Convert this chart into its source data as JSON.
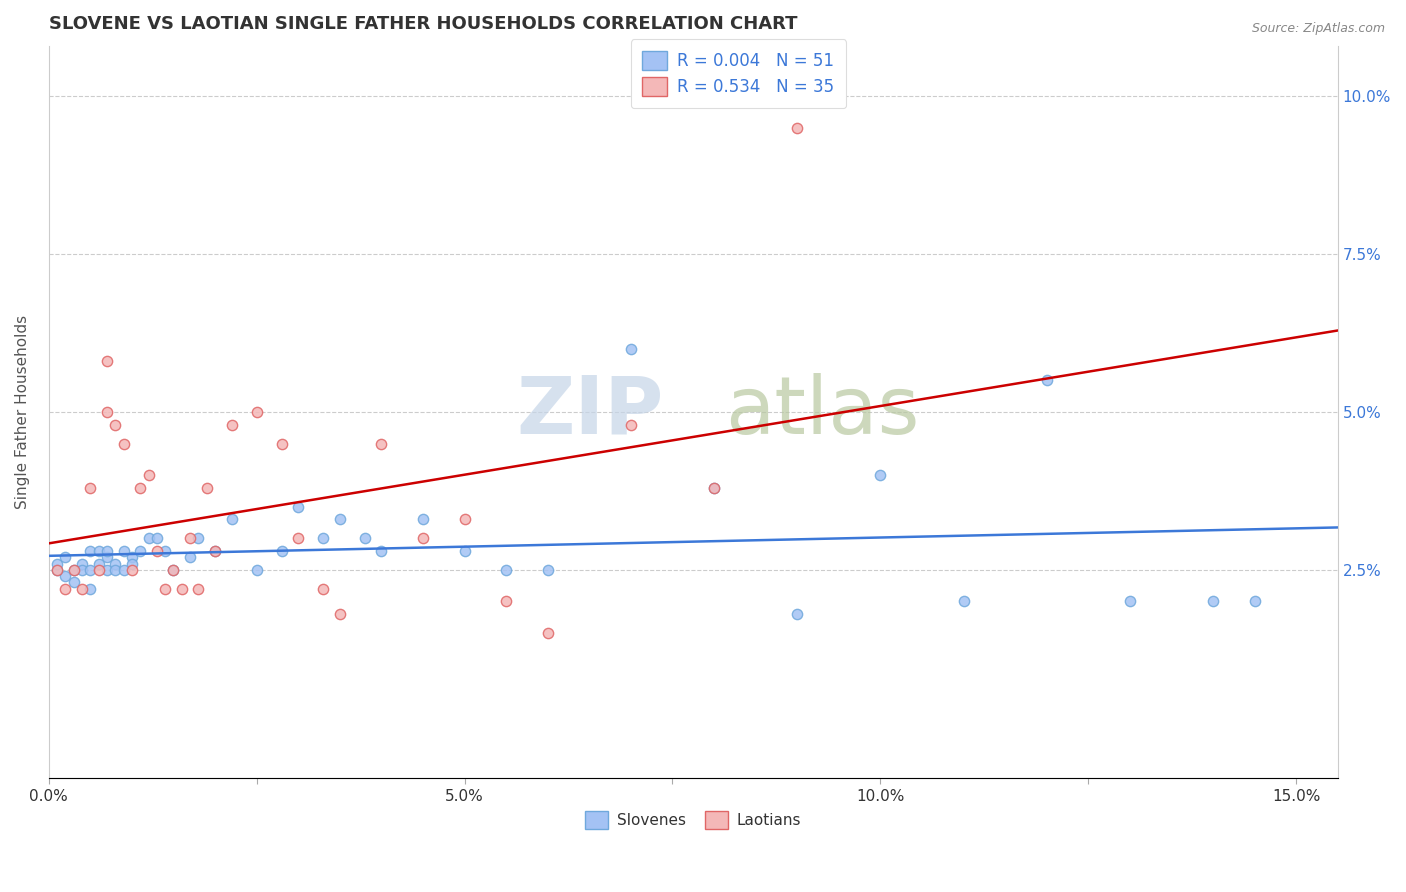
{
  "title": "SLOVENE VS LAOTIAN SINGLE FATHER HOUSEHOLDS CORRELATION CHART",
  "source": "Source: ZipAtlas.com",
  "ylabel": "Single Father Households",
  "xlim": [
    0.0,
    0.155
  ],
  "ylim": [
    -0.008,
    0.108
  ],
  "xticks": [
    0.0,
    0.025,
    0.05,
    0.075,
    0.1,
    0.125,
    0.15
  ],
  "xticklabels": [
    "0.0%",
    "",
    "5.0%",
    "",
    "10.0%",
    "",
    "15.0%"
  ],
  "yticks": [
    0.025,
    0.05,
    0.075,
    0.1
  ],
  "yticklabels": [
    "2.5%",
    "5.0%",
    "7.5%",
    "10.0%"
  ],
  "slovene_color": "#a4c2f4",
  "laotian_color": "#f4b8b8",
  "slovene_edge_color": "#6fa8dc",
  "laotian_edge_color": "#e06666",
  "slovene_line_color": "#3c78d8",
  "laotian_line_color": "#cc0000",
  "R_slovene": 0.004,
  "N_slovene": 51,
  "R_laotian": 0.534,
  "N_laotian": 35,
  "slovene_x": [
    0.001,
    0.001,
    0.002,
    0.002,
    0.003,
    0.003,
    0.004,
    0.004,
    0.005,
    0.005,
    0.005,
    0.006,
    0.006,
    0.007,
    0.007,
    0.007,
    0.008,
    0.008,
    0.009,
    0.009,
    0.01,
    0.01,
    0.011,
    0.012,
    0.013,
    0.014,
    0.015,
    0.017,
    0.018,
    0.02,
    0.022,
    0.025,
    0.028,
    0.03,
    0.033,
    0.035,
    0.038,
    0.04,
    0.045,
    0.05,
    0.055,
    0.06,
    0.07,
    0.08,
    0.09,
    0.1,
    0.11,
    0.12,
    0.13,
    0.14,
    0.145
  ],
  "slovene_y": [
    0.025,
    0.026,
    0.024,
    0.027,
    0.025,
    0.023,
    0.026,
    0.025,
    0.025,
    0.028,
    0.022,
    0.026,
    0.028,
    0.027,
    0.025,
    0.028,
    0.026,
    0.025,
    0.028,
    0.025,
    0.027,
    0.026,
    0.028,
    0.03,
    0.03,
    0.028,
    0.025,
    0.027,
    0.03,
    0.028,
    0.033,
    0.025,
    0.028,
    0.035,
    0.03,
    0.033,
    0.03,
    0.028,
    0.033,
    0.028,
    0.025,
    0.025,
    0.06,
    0.038,
    0.018,
    0.04,
    0.02,
    0.055,
    0.02,
    0.02,
    0.02
  ],
  "laotian_x": [
    0.001,
    0.002,
    0.003,
    0.004,
    0.005,
    0.006,
    0.007,
    0.007,
    0.008,
    0.009,
    0.01,
    0.011,
    0.012,
    0.013,
    0.014,
    0.015,
    0.016,
    0.017,
    0.018,
    0.019,
    0.02,
    0.022,
    0.025,
    0.028,
    0.03,
    0.033,
    0.035,
    0.04,
    0.045,
    0.05,
    0.055,
    0.06,
    0.07,
    0.08,
    0.09
  ],
  "laotian_y": [
    0.025,
    0.022,
    0.025,
    0.022,
    0.038,
    0.025,
    0.05,
    0.058,
    0.048,
    0.045,
    0.025,
    0.038,
    0.04,
    0.028,
    0.022,
    0.025,
    0.022,
    0.03,
    0.022,
    0.038,
    0.028,
    0.048,
    0.05,
    0.045,
    0.03,
    0.022,
    0.018,
    0.045,
    0.03,
    0.033,
    0.02,
    0.015,
    0.048,
    0.038,
    0.095
  ]
}
